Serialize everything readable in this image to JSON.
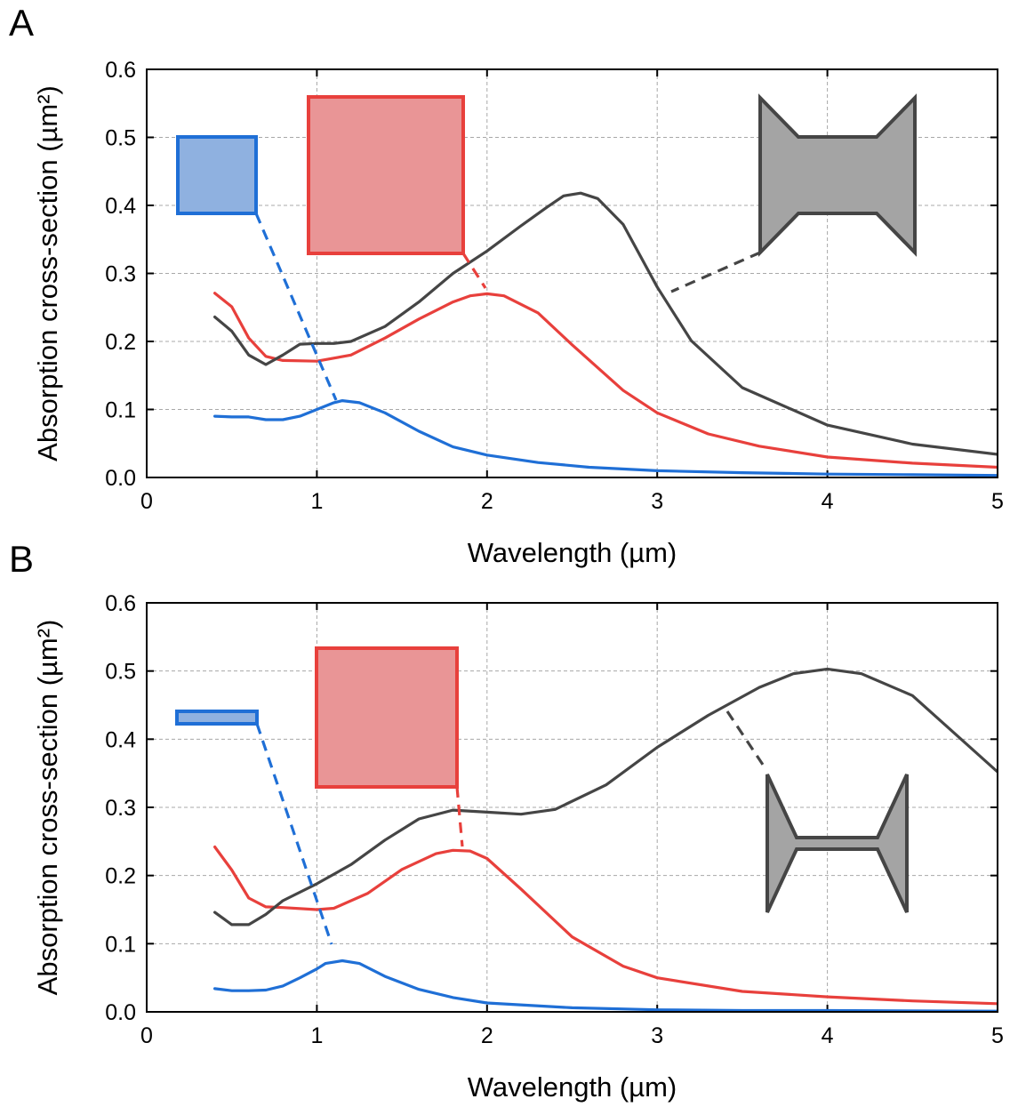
{
  "colors": {
    "blue": "#1f6fd6",
    "red": "#e8403c",
    "dark": "#454545",
    "blue_fill": "#8fb1e0",
    "red_fill": "#e99596",
    "dark_fill": "#a4a4a4"
  },
  "chart_data": [
    {
      "type": "line",
      "panel_label": "A",
      "title": "",
      "xlabel": "Wavelength (µm)",
      "ylabel": "Absorption cross-section (µm²)",
      "xlim": [
        0,
        5
      ],
      "ylim": [
        0,
        0.6
      ],
      "xticks": [
        0,
        1,
        2,
        3,
        4,
        5
      ],
      "yticks": [
        0.0,
        0.1,
        0.2,
        0.3,
        0.4,
        0.5,
        0.6
      ],
      "xtick_labels": [
        "0",
        "1",
        "2",
        "3",
        "4",
        "5"
      ],
      "ytick_labels": [
        "0.0",
        "0.1",
        "0.2",
        "0.3",
        "0.4",
        "0.5",
        "0.6"
      ],
      "grid": true,
      "series": [
        {
          "color": "#1f6fd6",
          "x": [
            0.4,
            0.5,
            0.6,
            0.7,
            0.8,
            0.9,
            1.0,
            1.1,
            1.15,
            1.25,
            1.4,
            1.6,
            1.8,
            2.0,
            2.3,
            2.6,
            3.0,
            3.5,
            4.0,
            4.5,
            5.0
          ],
          "y": [
            0.09,
            0.089,
            0.089,
            0.085,
            0.085,
            0.09,
            0.1,
            0.11,
            0.113,
            0.11,
            0.095,
            0.068,
            0.045,
            0.033,
            0.022,
            0.015,
            0.01,
            0.007,
            0.005,
            0.004,
            0.003
          ]
        },
        {
          "color": "#e8403c",
          "x": [
            0.4,
            0.5,
            0.6,
            0.7,
            0.8,
            1.0,
            1.2,
            1.4,
            1.6,
            1.8,
            1.9,
            2.0,
            2.1,
            2.3,
            2.5,
            2.8,
            3.0,
            3.3,
            3.6,
            4.0,
            4.5,
            5.0
          ],
          "y": [
            0.271,
            0.251,
            0.205,
            0.178,
            0.172,
            0.171,
            0.18,
            0.205,
            0.233,
            0.258,
            0.267,
            0.27,
            0.267,
            0.242,
            0.195,
            0.128,
            0.095,
            0.064,
            0.046,
            0.03,
            0.021,
            0.015
          ]
        },
        {
          "color": "#454545",
          "x": [
            0.4,
            0.5,
            0.6,
            0.7,
            0.8,
            0.9,
            1.0,
            1.1,
            1.2,
            1.4,
            1.6,
            1.8,
            2.0,
            2.2,
            2.35,
            2.45,
            2.55,
            2.65,
            2.8,
            3.0,
            3.2,
            3.5,
            4.0,
            4.5,
            5.0
          ],
          "y": [
            0.236,
            0.215,
            0.18,
            0.166,
            0.18,
            0.196,
            0.197,
            0.197,
            0.2,
            0.222,
            0.258,
            0.3,
            0.333,
            0.37,
            0.397,
            0.414,
            0.418,
            0.41,
            0.372,
            0.28,
            0.201,
            0.132,
            0.077,
            0.049,
            0.034
          ]
        }
      ],
      "insets": [
        {
          "shape": "rectangle",
          "color": "#1f6fd6"
        },
        {
          "shape": "rectangle",
          "color": "#e8403c"
        },
        {
          "shape": "bowtie",
          "color": "#454545"
        }
      ]
    },
    {
      "type": "line",
      "panel_label": "B",
      "title": "",
      "xlabel": "Wavelength (µm)",
      "ylabel": "Absorption cross-section (µm²)",
      "xlim": [
        0,
        5
      ],
      "ylim": [
        0,
        0.6
      ],
      "xticks": [
        0,
        1,
        2,
        3,
        4,
        5
      ],
      "yticks": [
        0.0,
        0.1,
        0.2,
        0.3,
        0.4,
        0.5,
        0.6
      ],
      "xtick_labels": [
        "0",
        "1",
        "2",
        "3",
        "4",
        "5"
      ],
      "ytick_labels": [
        "0.0",
        "0.1",
        "0.2",
        "0.3",
        "0.4",
        "0.5",
        "0.6"
      ],
      "grid": true,
      "series": [
        {
          "color": "#1f6fd6",
          "x": [
            0.4,
            0.5,
            0.6,
            0.7,
            0.8,
            0.9,
            1.0,
            1.05,
            1.15,
            1.25,
            1.4,
            1.6,
            1.8,
            2.0,
            2.5,
            3.0,
            3.5,
            4.0,
            5.0
          ],
          "y": [
            0.034,
            0.031,
            0.031,
            0.032,
            0.038,
            0.05,
            0.063,
            0.071,
            0.075,
            0.071,
            0.052,
            0.033,
            0.021,
            0.013,
            0.006,
            0.003,
            0.002,
            0.002,
            0.001
          ]
        },
        {
          "color": "#e8403c",
          "x": [
            0.4,
            0.5,
            0.6,
            0.7,
            0.8,
            1.0,
            1.1,
            1.3,
            1.5,
            1.7,
            1.8,
            1.9,
            2.0,
            2.2,
            2.5,
            2.8,
            3.0,
            3.5,
            4.0,
            4.5,
            5.0
          ],
          "y": [
            0.242,
            0.208,
            0.167,
            0.154,
            0.153,
            0.15,
            0.152,
            0.174,
            0.209,
            0.232,
            0.237,
            0.236,
            0.225,
            0.18,
            0.11,
            0.067,
            0.05,
            0.03,
            0.022,
            0.016,
            0.012
          ]
        },
        {
          "color": "#454545",
          "x": [
            0.4,
            0.5,
            0.6,
            0.7,
            0.8,
            1.0,
            1.2,
            1.4,
            1.6,
            1.8,
            2.0,
            2.2,
            2.4,
            2.7,
            3.0,
            3.3,
            3.6,
            3.8,
            4.0,
            4.2,
            4.5,
            5.0
          ],
          "y": [
            0.146,
            0.128,
            0.128,
            0.143,
            0.163,
            0.188,
            0.216,
            0.252,
            0.283,
            0.296,
            0.293,
            0.29,
            0.297,
            0.333,
            0.388,
            0.435,
            0.476,
            0.496,
            0.503,
            0.496,
            0.464,
            0.352
          ]
        }
      ],
      "insets": [
        {
          "shape": "rectangle",
          "color": "#1f6fd6"
        },
        {
          "shape": "rectangle",
          "color": "#e8403c"
        },
        {
          "shape": "bowtie",
          "color": "#454545"
        }
      ]
    }
  ]
}
